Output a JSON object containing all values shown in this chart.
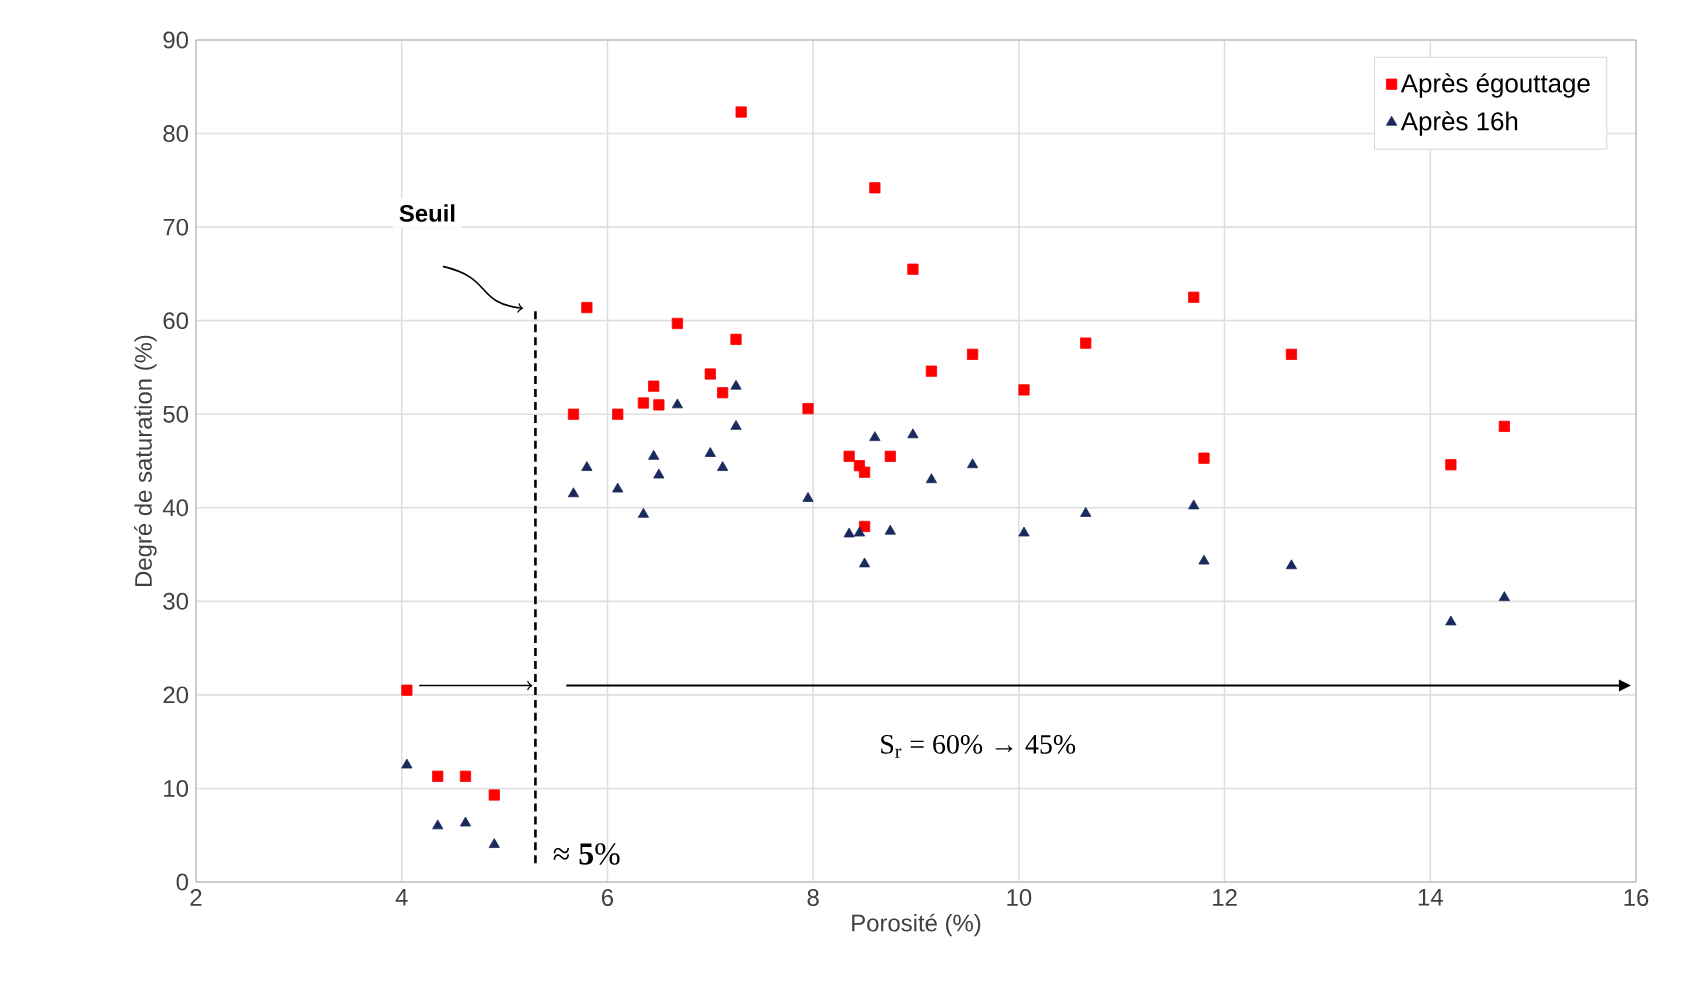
{
  "chart_data": {
    "type": "scatter",
    "xlabel": "Porosité (%)",
    "ylabel": "Degré de saturation (%)",
    "xlim": [
      2,
      16
    ],
    "xticks": [
      2,
      4,
      6,
      8,
      10,
      12,
      14,
      16
    ],
    "ylim": [
      0,
      90
    ],
    "yticks": [
      0,
      10,
      20,
      30,
      40,
      50,
      60,
      70,
      80,
      90
    ],
    "grid": true,
    "legend": "top right",
    "series": [
      {
        "name": "Après égouttage",
        "color": "#ff0000",
        "marker": "square",
        "x": [
          4.05,
          4.35,
          4.62,
          4.9,
          5.67,
          5.8,
          6.1,
          6.35,
          6.45,
          6.5,
          6.68,
          7.0,
          7.12,
          7.25,
          7.3,
          7.95,
          8.35,
          8.45,
          8.5,
          8.5,
          8.6,
          8.75,
          8.97,
          9.15,
          9.55,
          10.05,
          10.65,
          11.7,
          11.8,
          12.65,
          14.2,
          14.72
        ],
        "values": [
          20.5,
          11.3,
          11.3,
          9.3,
          50,
          61.4,
          50,
          51.2,
          53,
          51,
          59.7,
          54.3,
          52.3,
          58,
          82.3,
          50.6,
          45.5,
          44.5,
          43.8,
          38,
          74.2,
          45.5,
          65.5,
          54.6,
          56.4,
          52.6,
          57.6,
          62.5,
          45.3,
          56.4,
          44.6,
          48.7
        ]
      },
      {
        "name": "Après 16h",
        "color": "#1a2a5c",
        "marker": "triangle",
        "x": [
          4.05,
          4.35,
          4.62,
          4.9,
          5.67,
          5.8,
          6.1,
          6.35,
          6.45,
          6.5,
          6.68,
          7.0,
          7.12,
          7.25,
          7.25,
          7.95,
          8.35,
          8.45,
          8.5,
          8.6,
          8.75,
          8.97,
          9.15,
          9.55,
          10.05,
          10.65,
          11.7,
          11.8,
          12.65,
          14.2,
          14.72
        ],
        "values": [
          12.5,
          6,
          6.3,
          4,
          41.5,
          44.3,
          42,
          39.3,
          45.5,
          43.5,
          51,
          45.8,
          44.3,
          53,
          48.7,
          41,
          37.2,
          37.3,
          34,
          47.5,
          37.5,
          47.8,
          43,
          44.6,
          37.3,
          39.4,
          40.2,
          34.3,
          33.8,
          27.8,
          30.4
        ]
      }
    ],
    "ref_lines": [
      {
        "axis": "x",
        "value": 5.3,
        "line_style": "dashed",
        "color": "#000000"
      }
    ],
    "annotations": [
      "Seuil",
      "≈ **5**%",
      "S$_{r}$ = 60% → 45%"
    ]
  }
}
